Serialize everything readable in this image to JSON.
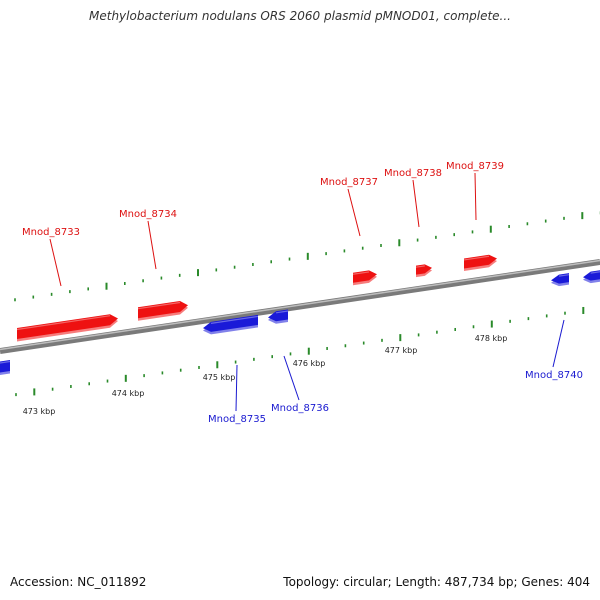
{
  "title": "Methylobacterium nodulans ORS 2060 plasmid pMNOD01, complete...",
  "footer": {
    "accession": "Accession: NC_011892",
    "summary": "Topology: circular; Length: 487,734 bp; Genes: 404"
  },
  "colors": {
    "forward": "#ee1111",
    "reverse": "#1a1ad8",
    "ticks": "#2a8a2a",
    "backbone": "#8c8c8c"
  },
  "scale_labels": [
    "473 kbp",
    "474 kbp",
    "475 kbp",
    "476 kbp",
    "477 kbp",
    "478 kbp"
  ],
  "genes": [
    {
      "label": "Mnod_8733",
      "strand": "forward"
    },
    {
      "label": "Mnod_8734",
      "strand": "forward"
    },
    {
      "label": "Mnod_8735",
      "strand": "reverse"
    },
    {
      "label": "Mnod_8736",
      "strand": "reverse"
    },
    {
      "label": "Mnod_8737",
      "strand": "forward"
    },
    {
      "label": "Mnod_8738",
      "strand": "forward"
    },
    {
      "label": "Mnod_8739",
      "strand": "forward"
    },
    {
      "label": "Mnod_8740",
      "strand": "reverse"
    }
  ]
}
